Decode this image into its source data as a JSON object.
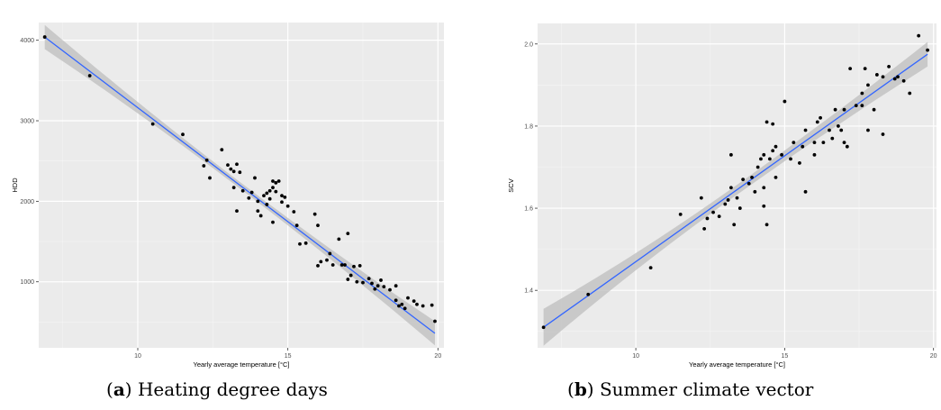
{
  "chart_data": [
    {
      "type": "scatter",
      "xlabel": "Yearly average temperature [°C]",
      "ylabel": "HDD",
      "xlim": [
        6.7,
        20.2
      ],
      "ylim": [
        180,
        4220
      ],
      "x_ticks": [
        10,
        15,
        20
      ],
      "y_ticks": [
        1000,
        2000,
        3000,
        4000
      ],
      "grid": true,
      "points": [
        [
          6.9,
          4040
        ],
        [
          8.4,
          3560
        ],
        [
          10.5,
          2960
        ],
        [
          11.5,
          2830
        ],
        [
          12.2,
          2440
        ],
        [
          12.3,
          2510
        ],
        [
          12.4,
          2290
        ],
        [
          12.8,
          2640
        ],
        [
          13.0,
          2450
        ],
        [
          13.1,
          2400
        ],
        [
          13.2,
          2370
        ],
        [
          13.3,
          2460
        ],
        [
          13.2,
          2170
        ],
        [
          13.3,
          1880
        ],
        [
          13.4,
          2360
        ],
        [
          13.5,
          2130
        ],
        [
          13.7,
          2040
        ],
        [
          13.8,
          2110
        ],
        [
          13.9,
          2290
        ],
        [
          14.0,
          2000
        ],
        [
          14.0,
          1880
        ],
        [
          14.1,
          1820
        ],
        [
          14.2,
          2070
        ],
        [
          14.3,
          2100
        ],
        [
          14.3,
          1960
        ],
        [
          14.4,
          2130
        ],
        [
          14.4,
          2030
        ],
        [
          14.5,
          2250
        ],
        [
          14.5,
          2170
        ],
        [
          14.6,
          2120
        ],
        [
          14.6,
          2230
        ],
        [
          14.5,
          1740
        ],
        [
          14.7,
          2250
        ],
        [
          14.8,
          2070
        ],
        [
          14.8,
          1990
        ],
        [
          14.9,
          2050
        ],
        [
          15.0,
          1940
        ],
        [
          15.2,
          1870
        ],
        [
          15.3,
          1700
        ],
        [
          15.4,
          1470
        ],
        [
          15.6,
          1480
        ],
        [
          15.9,
          1840
        ],
        [
          16.0,
          1700
        ],
        [
          16.1,
          1250
        ],
        [
          16.0,
          1200
        ],
        [
          16.3,
          1270
        ],
        [
          16.4,
          1350
        ],
        [
          16.5,
          1210
        ],
        [
          16.7,
          1530
        ],
        [
          16.8,
          1210
        ],
        [
          16.9,
          1210
        ],
        [
          17.0,
          1600
        ],
        [
          17.0,
          1030
        ],
        [
          17.1,
          1080
        ],
        [
          17.2,
          1190
        ],
        [
          17.3,
          1000
        ],
        [
          17.4,
          1200
        ],
        [
          17.5,
          990
        ],
        [
          17.7,
          1040
        ],
        [
          17.8,
          980
        ],
        [
          17.9,
          910
        ],
        [
          18.0,
          950
        ],
        [
          18.1,
          1020
        ],
        [
          18.2,
          940
        ],
        [
          18.4,
          900
        ],
        [
          18.6,
          950
        ],
        [
          18.6,
          770
        ],
        [
          18.7,
          700
        ],
        [
          18.8,
          720
        ],
        [
          18.9,
          670
        ],
        [
          19.0,
          800
        ],
        [
          19.2,
          760
        ],
        [
          19.3,
          720
        ],
        [
          19.5,
          700
        ],
        [
          19.8,
          710
        ],
        [
          19.9,
          510
        ]
      ],
      "fit_line": {
        "x": [
          6.9,
          19.9
        ],
        "y": [
          4040,
          360
        ],
        "color": "#3366FF"
      },
      "confidence_band": {
        "x": [
          6.9,
          13.4,
          19.9
        ],
        "half_width": [
          150,
          40,
          150
        ],
        "color": "#BEBEBE"
      }
    },
    {
      "type": "scatter",
      "xlabel": "Yearly average temperature [°C]",
      "ylabel": "SCV",
      "xlim": [
        6.7,
        20.1
      ],
      "ylim": [
        1.26,
        2.05
      ],
      "x_ticks": [
        10,
        15,
        20
      ],
      "y_ticks": [
        1.4,
        1.6,
        1.8,
        2.0
      ],
      "y_tick_labels": [
        "1.4",
        "1.6",
        "1.8",
        "2.0"
      ],
      "grid": true,
      "points": [
        [
          6.9,
          1.31
        ],
        [
          8.4,
          1.39
        ],
        [
          10.5,
          1.455
        ],
        [
          11.5,
          1.585
        ],
        [
          12.2,
          1.625
        ],
        [
          12.3,
          1.55
        ],
        [
          12.4,
          1.575
        ],
        [
          12.6,
          1.59
        ],
        [
          12.8,
          1.58
        ],
        [
          13.0,
          1.61
        ],
        [
          13.1,
          1.62
        ],
        [
          13.2,
          1.73
        ],
        [
          13.2,
          1.65
        ],
        [
          13.3,
          1.56
        ],
        [
          13.4,
          1.625
        ],
        [
          13.5,
          1.6
        ],
        [
          13.6,
          1.67
        ],
        [
          13.8,
          1.66
        ],
        [
          13.9,
          1.675
        ],
        [
          14.0,
          1.64
        ],
        [
          14.1,
          1.7
        ],
        [
          14.2,
          1.72
        ],
        [
          14.3,
          1.73
        ],
        [
          14.3,
          1.65
        ],
        [
          14.3,
          1.605
        ],
        [
          14.4,
          1.56
        ],
        [
          14.4,
          1.81
        ],
        [
          14.5,
          1.72
        ],
        [
          14.6,
          1.805
        ],
        [
          14.6,
          1.74
        ],
        [
          14.7,
          1.675
        ],
        [
          14.7,
          1.75
        ],
        [
          14.9,
          1.73
        ],
        [
          15.0,
          1.86
        ],
        [
          15.2,
          1.72
        ],
        [
          15.3,
          1.76
        ],
        [
          15.5,
          1.71
        ],
        [
          15.6,
          1.75
        ],
        [
          15.7,
          1.64
        ],
        [
          15.7,
          1.79
        ],
        [
          16.0,
          1.73
        ],
        [
          16.0,
          1.76
        ],
        [
          16.1,
          1.81
        ],
        [
          16.2,
          1.82
        ],
        [
          16.3,
          1.76
        ],
        [
          16.5,
          1.79
        ],
        [
          16.6,
          1.77
        ],
        [
          16.7,
          1.84
        ],
        [
          16.8,
          1.8
        ],
        [
          16.9,
          1.79
        ],
        [
          17.0,
          1.76
        ],
        [
          17.0,
          1.84
        ],
        [
          17.1,
          1.75
        ],
        [
          17.2,
          1.94
        ],
        [
          17.4,
          1.85
        ],
        [
          17.6,
          1.88
        ],
        [
          17.6,
          1.85
        ],
        [
          17.7,
          1.94
        ],
        [
          17.8,
          1.79
        ],
        [
          17.8,
          1.9
        ],
        [
          18.0,
          1.84
        ],
        [
          18.1,
          1.925
        ],
        [
          18.3,
          1.92
        ],
        [
          18.3,
          1.78
        ],
        [
          18.5,
          1.945
        ],
        [
          18.7,
          1.915
        ],
        [
          18.8,
          1.92
        ],
        [
          19.0,
          1.91
        ],
        [
          19.2,
          1.88
        ],
        [
          19.5,
          2.02
        ],
        [
          19.8,
          1.985
        ]
      ],
      "fit_line": {
        "x": [
          6.9,
          19.8
        ],
        "y": [
          1.31,
          1.975
        ],
        "color": "#3366FF"
      },
      "confidence_band": {
        "x": [
          6.9,
          13.4,
          19.8
        ],
        "half_width": [
          0.045,
          0.012,
          0.03
        ],
        "color": "#BEBEBE"
      }
    }
  ],
  "captions": [
    {
      "letter": "a",
      "text": " Heating degree days"
    },
    {
      "letter": "b",
      "text": " Summer climate vector"
    }
  ]
}
